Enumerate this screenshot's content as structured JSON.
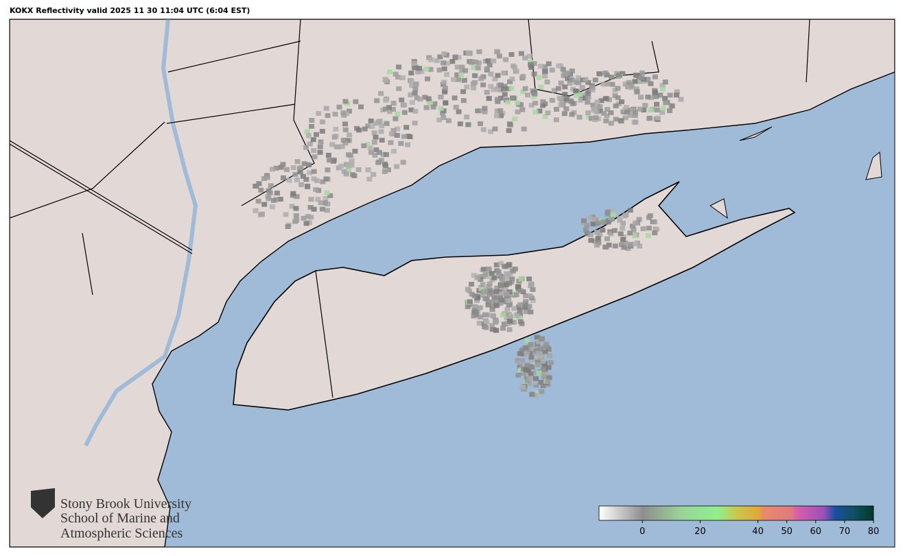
{
  "title": "KOKX Reflectivity valid 2025 11 30 11:04 UTC (6:04 EST)",
  "logo": {
    "lines": [
      "Stony Brook University",
      "School of Marine and",
      "Atmospheric Sciences"
    ]
  },
  "colorbar": {
    "lim": [
      -15,
      80
    ],
    "ticks": [
      0,
      20,
      40,
      50,
      60,
      70,
      80
    ]
  }
}
